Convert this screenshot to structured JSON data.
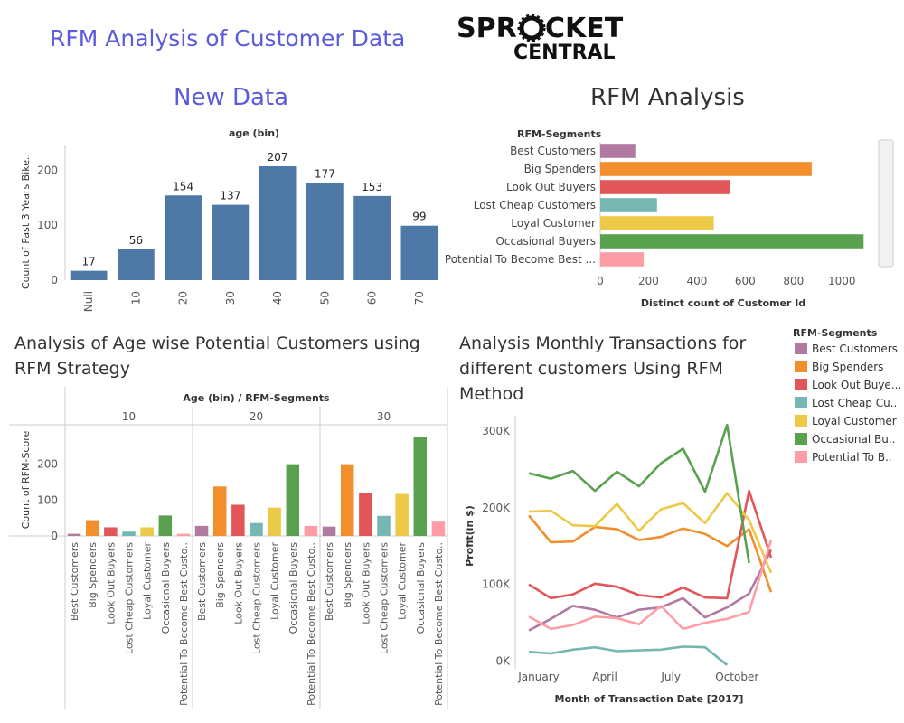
{
  "page": {
    "title": "RFM Analysis of Customer Data",
    "logo_line1": "SPR",
    "logo_line1b": "CKET",
    "logo_line2": "CENTRAL"
  },
  "panels": {
    "new_data_title": "New Data",
    "rfm_title": "RFM Analysis",
    "age_title": "Analysis of Age wise Potential Customers using RFM Strategy",
    "monthly_title": "Analysis Monthly Transactions for different customers Using RFM Method"
  },
  "colors": {
    "Best Customers": "#b07aa1",
    "Big Spenders": "#f28e2b",
    "Look Out Buyers": "#e15759",
    "Lost Cheap Customers": "#76b7b2",
    "Loyal Customer": "#edc948",
    "Occasional Buyers": "#59a14f",
    "Potential To Become Best Customers": "#ff9da7",
    "blue": "#4e79a7"
  },
  "chart_data": [
    {
      "id": "age-bin",
      "type": "bar",
      "title": "age (bin)",
      "ylabel": "Count of Past 3 Years Bike..",
      "categories": [
        "Null",
        "10",
        "20",
        "30",
        "40",
        "50",
        "60",
        "70"
      ],
      "values": [
        17,
        56,
        154,
        137,
        207,
        177,
        153,
        99
      ],
      "value_labels": [
        "17",
        "56",
        "154",
        "137",
        "207",
        "177",
        "153",
        "99"
      ],
      "ylim": [
        0,
        230
      ],
      "yticks": [
        0,
        100,
        200
      ],
      "ytick_labels": [
        "0",
        "100",
        "200"
      ],
      "color": "#4e79a7"
    },
    {
      "id": "rfm-segments",
      "type": "bar",
      "orientation": "horizontal",
      "header": "RFM-Segments",
      "xlabel": "Distinct count of Customer Id",
      "categories": [
        "Best Customers",
        "Big Spenders",
        "Look Out Buyers",
        "Lost Cheap Customers",
        "Loyal Customer",
        "Occasional Buyers",
        "Potential To Become Best ..."
      ],
      "values": [
        145,
        875,
        535,
        235,
        470,
        1090,
        180
      ],
      "xlim": [
        0,
        1130
      ],
      "xticks": [
        0,
        200,
        400,
        600,
        800,
        1000
      ],
      "xtick_labels": [
        "0",
        "200",
        "400",
        "600",
        "800",
        "1000"
      ]
    },
    {
      "id": "age-rfm",
      "type": "bar",
      "title": "Age (bin) / RFM-Segments",
      "ylabel": "Count of RFM-Score",
      "groups": [
        "10",
        "20",
        "30"
      ],
      "segments": [
        "Best Customers",
        "Big Spenders",
        "Look Out Buyers",
        "Lost Cheap Customers",
        "Loyal Customer",
        "Occasional Buyers",
        "Potential To Become Best Custo.."
      ],
      "values": [
        [
          6,
          44,
          24,
          12,
          24,
          57,
          6
        ],
        [
          28,
          138,
          87,
          36,
          79,
          200,
          28
        ],
        [
          26,
          200,
          120,
          56,
          117,
          275,
          40
        ]
      ],
      "ylim": [
        0,
        310
      ],
      "yticks": [
        0,
        100,
        200
      ],
      "ytick_labels": [
        "0",
        "100",
        "200"
      ]
    },
    {
      "id": "monthly",
      "type": "line",
      "xlabel": "Month of Transaction Date [2017]",
      "ylabel": "Profit(in $)",
      "x": [
        "Jan",
        "Feb",
        "Mar",
        "Apr",
        "May",
        "Jun",
        "Jul",
        "Aug",
        "Sep",
        "Oct",
        "Nov",
        "Dec"
      ],
      "xtick_labels": [
        "January",
        "April",
        "July",
        "October"
      ],
      "ylim": [
        -10000,
        320000
      ],
      "yticks": [
        0,
        100000,
        200000,
        300000
      ],
      "ytick_labels": [
        "0K",
        "100K",
        "200K",
        "300K"
      ],
      "legend_title": "RFM-Segments",
      "legend_position": "right",
      "series": [
        {
          "name": "Best Customers",
          "legend_label": "Best Customers",
          "values": [
            40000,
            55000,
            72000,
            67000,
            57000,
            67000,
            70000,
            82000,
            57000,
            70000,
            88000,
            145000
          ]
        },
        {
          "name": "Big Spenders",
          "legend_label": "Big Spenders",
          "values": [
            190000,
            155000,
            156000,
            175000,
            172000,
            158000,
            162000,
            173000,
            166000,
            150000,
            172000,
            90000
          ]
        },
        {
          "name": "Look Out Buyers",
          "legend_label": "Look Out Buye...",
          "values": [
            100000,
            82000,
            87000,
            101000,
            97000,
            86000,
            83000,
            96000,
            83000,
            82000,
            222000,
            135000
          ]
        },
        {
          "name": "Lost Cheap Customers",
          "legend_label": "Lost Cheap Cu..",
          "values": [
            12000,
            10000,
            15000,
            18000,
            13000,
            14000,
            15000,
            19000,
            18000,
            -5000,
            null,
            null
          ]
        },
        {
          "name": "Loyal Customer",
          "legend_label": "Loyal Customer",
          "values": [
            195000,
            196000,
            177000,
            176000,
            205000,
            170000,
            198000,
            206000,
            180000,
            219000,
            184000,
            115000
          ]
        },
        {
          "name": "Occasional Buyers",
          "legend_label": "Occasional Bu..",
          "values": [
            245000,
            238000,
            248000,
            222000,
            247000,
            228000,
            258000,
            277000,
            221000,
            308000,
            128000,
            null
          ]
        },
        {
          "name": "Potential To Become Best Customers",
          "legend_label": "Potential To B..",
          "values": [
            58000,
            42000,
            47000,
            58000,
            56000,
            48000,
            72000,
            42000,
            50000,
            55000,
            64000,
            158000
          ]
        }
      ]
    }
  ]
}
